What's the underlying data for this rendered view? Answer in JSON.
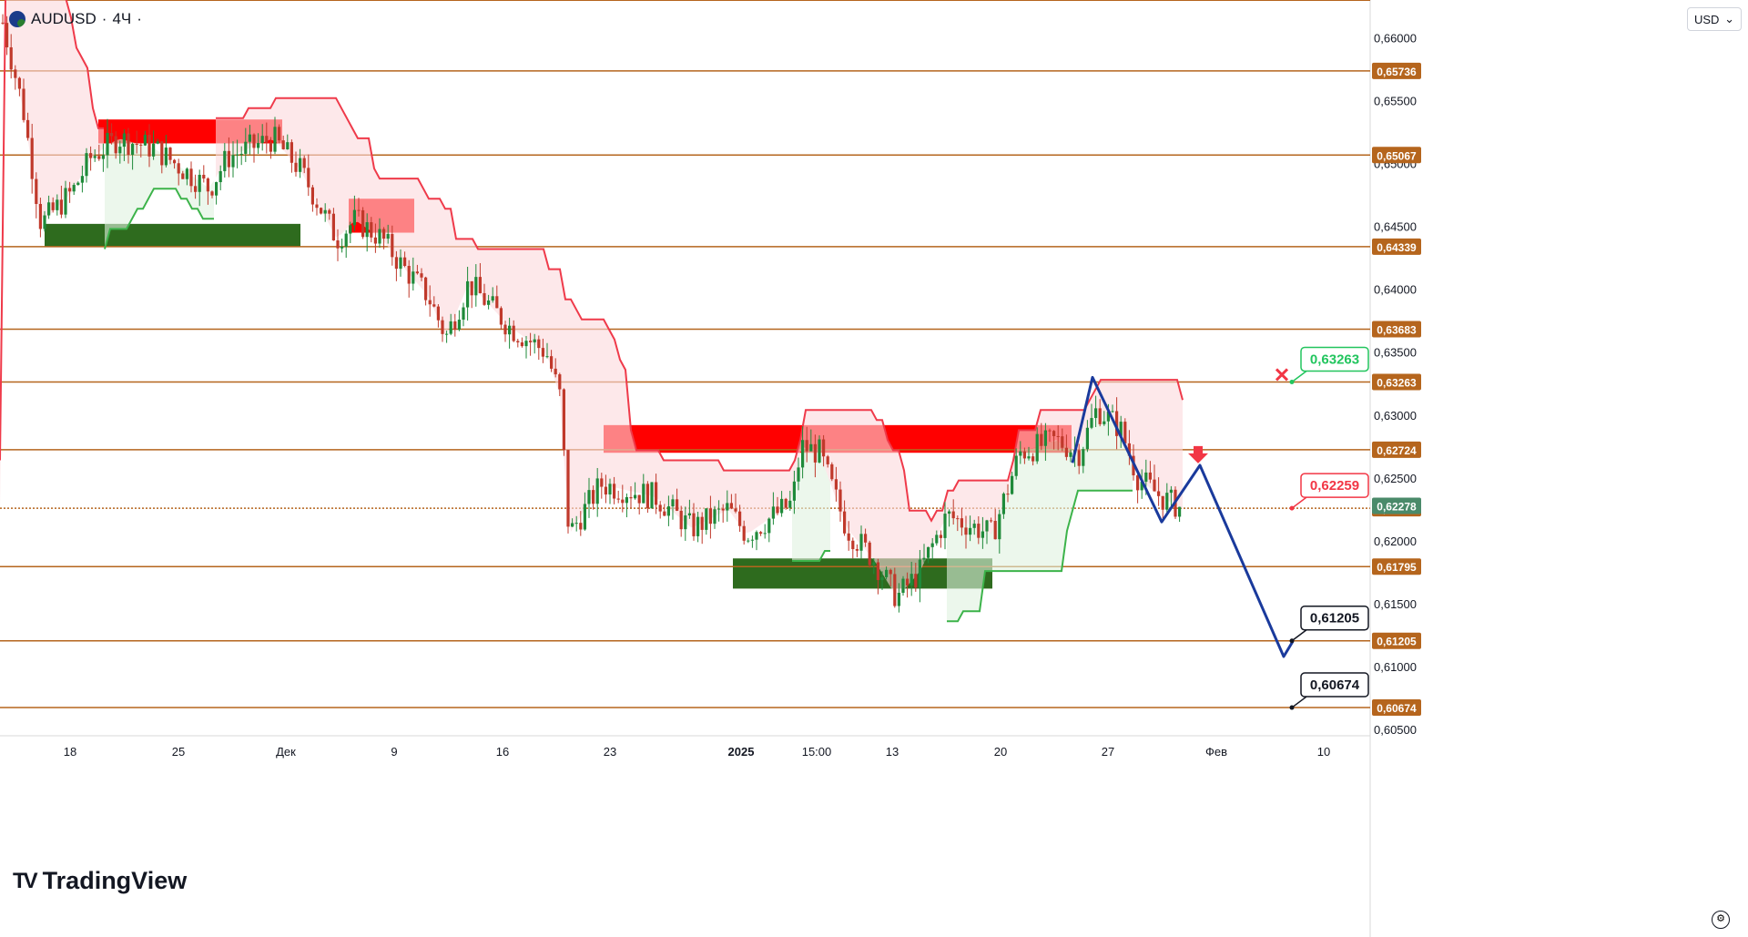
{
  "header": {
    "symbol": "AUDUSD",
    "timeframe": "4Ч",
    "separator": "·",
    "currency": "USD"
  },
  "brand": {
    "name": "TradingView",
    "mark": "TV"
  },
  "colors": {
    "level_line": "#b5651d",
    "supply": "#ff0000",
    "demand": "#2e6b1e",
    "trail_red": "#ef3a4a",
    "trail_green": "#3cb34a",
    "projection": "#1a3a9c",
    "candle_up": "#1f8a3a",
    "candle_down": "#c0392b"
  },
  "chart_data": {
    "type": "candlestick",
    "y_range": [
      0.6045,
      0.663
    ],
    "y_ticks": [
      "0,66000",
      "0,65500",
      "0,65000",
      "0,64500",
      "0,64000",
      "0,63500",
      "0,63000",
      "0,62500",
      "0,62000",
      "0,61500",
      "0,61000",
      "0,60500"
    ],
    "y_tick_values": [
      0.66,
      0.655,
      0.65,
      0.645,
      0.64,
      0.635,
      0.63,
      0.625,
      0.62,
      0.615,
      0.61,
      0.605
    ],
    "x_ticks": [
      "18",
      "25",
      "Дек",
      "9",
      "16",
      "23",
      "2025",
      "15:00",
      "13",
      "20",
      "27",
      "Фев",
      "10"
    ],
    "levels": [
      {
        "value": 0.65736,
        "label": "0,65736"
      },
      {
        "value": 0.65067,
        "label": "0,65067"
      },
      {
        "value": 0.64339,
        "label": "0,64339"
      },
      {
        "value": 0.63683,
        "label": "0,63683"
      },
      {
        "value": 0.63263,
        "label": "0,63263"
      },
      {
        "value": 0.62724,
        "label": "0,62724"
      },
      {
        "value": 0.62259,
        "label": "0,62259"
      },
      {
        "value": 0.61795,
        "label": "0,61795"
      },
      {
        "value": 0.61205,
        "label": "0,61205"
      },
      {
        "value": 0.60674,
        "label": "0,60674"
      }
    ],
    "current_price": {
      "value": 0.62278,
      "label": "0,62278"
    },
    "callouts": [
      {
        "value": 0.63263,
        "label": "0,63263",
        "style": "stop"
      },
      {
        "value": 0.62259,
        "label": "0,62259",
        "style": "entry"
      },
      {
        "value": 0.61205,
        "label": "0,61205",
        "style": "target"
      },
      {
        "value": 0.60674,
        "label": "0,60674",
        "style": "target"
      }
    ],
    "supply_zones": [
      {
        "y_top": 0.6535,
        "y_bottom": 0.6516
      },
      {
        "y_top": 0.6472,
        "y_bottom": 0.6445
      },
      {
        "y_top": 0.6292,
        "y_bottom": 0.627
      }
    ],
    "demand_zones": [
      {
        "y_top": 0.6452,
        "y_bottom": 0.6434
      },
      {
        "y_top": 0.6186,
        "y_bottom": 0.6162
      }
    ],
    "projection_path": [
      0.6262,
      0.633,
      0.6215,
      0.626,
      0.6108,
      0.612
    ]
  }
}
